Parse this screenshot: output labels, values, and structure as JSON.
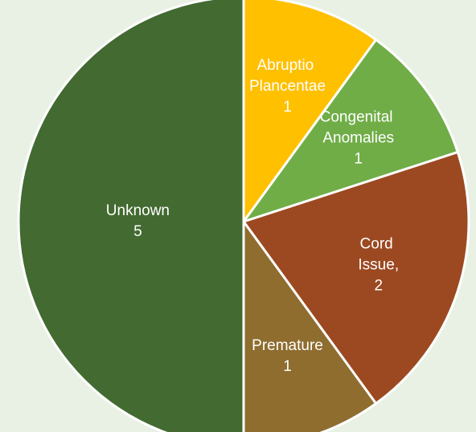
{
  "chart_data": {
    "type": "pie",
    "categories": [
      "Abruptio Plancentae",
      "Congenital Anomalies",
      "Cord Issue,",
      "Premature",
      "Unknown"
    ],
    "values": [
      1,
      1,
      2,
      1,
      5
    ],
    "colors": [
      "#ffc000",
      "#70ad47",
      "#9c4921",
      "#8e6d2f",
      "#426a31"
    ]
  }
}
